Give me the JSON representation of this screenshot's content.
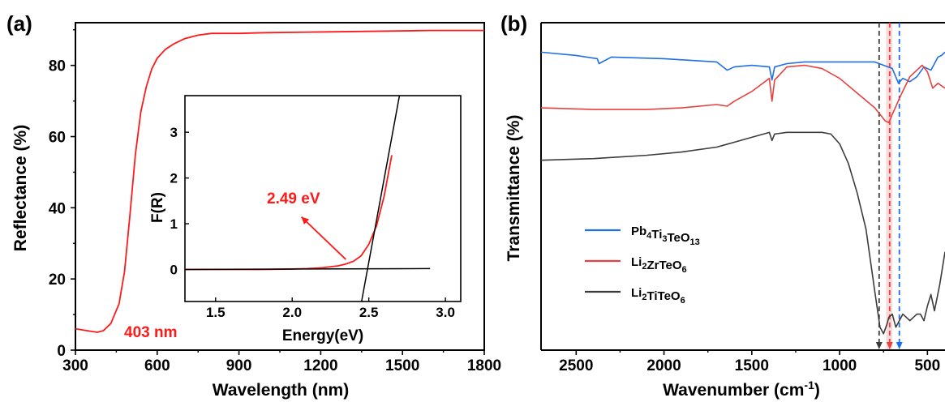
{
  "panels": {
    "a": {
      "label": "(a)",
      "xlabel": "Wavelength (nm)",
      "ylabel": "Reflectance (%)",
      "annotation": "403 nm",
      "xticks": [
        300,
        600,
        900,
        1200,
        1500,
        1800
      ],
      "yticks": [
        0,
        20,
        40,
        60,
        80
      ],
      "inset": {
        "xlabel": "Energy(eV)",
        "ylabel": "F(R)",
        "annotation": "2.49 eV",
        "xticks": [
          "1.5",
          "2.0",
          "2.5",
          "3.0"
        ],
        "yticks": [
          "0",
          "1",
          "2",
          "3"
        ]
      }
    },
    "b": {
      "label": "(b)",
      "xlabel": "Wavenumber (cm",
      "xlabel_sup": "-1",
      "xlabel_end": ")",
      "ylabel": "Transmittance (%)",
      "xticks": [
        2500,
        2000,
        1500,
        1000,
        500
      ],
      "legend": [
        {
          "base": "Pb",
          "parts": [
            [
              "Pb",
              ""
            ],
            [
              "4",
              "sub"
            ],
            [
              "Ti",
              ""
            ],
            [
              "3",
              "sub"
            ],
            [
              "TeO",
              ""
            ],
            [
              "13",
              "sub"
            ]
          ],
          "color": "#1f6fe5"
        },
        {
          "base": "Li",
          "parts": [
            [
              "Li",
              ""
            ],
            [
              "2",
              "sub"
            ],
            [
              "ZrTeO",
              ""
            ],
            [
              "6",
              "sub"
            ]
          ],
          "color": "#e8403f"
        },
        {
          "base": "Li",
          "parts": [
            [
              "Li",
              ""
            ],
            [
              "2",
              "sub"
            ],
            [
              "TiTeO",
              ""
            ],
            [
              "6",
              "sub"
            ]
          ],
          "color": "#3c3c3c"
        }
      ],
      "legend_names": [
        "Pb4Ti3TeO13",
        "Li2ZrTeO6",
        "Li2TiTeO6"
      ]
    }
  },
  "chart_data": [
    {
      "type": "line",
      "title": "",
      "xlabel": "Wavelength (nm)",
      "ylabel": "Reflectance (%)",
      "xlim": [
        300,
        1800
      ],
      "ylim": [
        0,
        92
      ],
      "series": [
        {
          "color": "#ff1a1a",
          "x": [
            300,
            340,
            380,
            403,
            430,
            460,
            480,
            500,
            520,
            540,
            560,
            580,
            600,
            630,
            660,
            700,
            750,
            800,
            850,
            900,
            1000,
            1200,
            1400,
            1600,
            1800
          ],
          "y": [
            6,
            5.5,
            5,
            5.5,
            7.5,
            13,
            22,
            38,
            55,
            67,
            74,
            79,
            82,
            84.5,
            86,
            87.5,
            88.5,
            89,
            89,
            89,
            89.2,
            89.4,
            89.6,
            89.8,
            89.8
          ]
        }
      ],
      "annotations": [
        "403 nm"
      ],
      "inset": {
        "type": "line",
        "xlabel": "Energy(eV)",
        "ylabel": "F(R)",
        "xlim": [
          1.3,
          3.1
        ],
        "ylim": [
          -0.7,
          3.8
        ],
        "series": [
          {
            "color": "#ff1a1a",
            "x": [
              1.3,
              1.6,
              1.8,
              2.0,
              2.1,
              2.2,
              2.3,
              2.35,
              2.4,
              2.45,
              2.5,
              2.55,
              2.6,
              2.65
            ],
            "y": [
              0.0,
              0.0,
              0.0,
              0.01,
              0.02,
              0.04,
              0.08,
              0.12,
              0.18,
              0.3,
              0.55,
              0.95,
              1.6,
              2.5
            ]
          },
          {
            "color": "#000000",
            "x": [
              2.45,
              2.7
            ],
            "y": [
              -0.75,
              3.8
            ]
          },
          {
            "color": "#000000",
            "x": [
              1.3,
              2.9
            ],
            "y": [
              0.0,
              0.02
            ]
          }
        ],
        "annotations": [
          "2.49 eV"
        ]
      }
    },
    {
      "type": "line",
      "title": "",
      "xlabel": "Wavenumber (cm-1)",
      "ylabel": "Transmittance (%)",
      "xlim": [
        2700,
        400
      ],
      "ylim": [
        0,
        100
      ],
      "reversed_x": true,
      "series": [
        {
          "name": "Pb4Ti3TeO13",
          "color": "#1f6fe5",
          "x": [
            2700,
            2500,
            2380,
            2370,
            2300,
            2000,
            1700,
            1640,
            1600,
            1500,
            1400,
            1385,
            1370,
            1300,
            1200,
            1100,
            1000,
            900,
            800,
            700,
            665,
            640,
            600,
            560,
            520,
            480,
            440,
            420,
            400
          ],
          "y": [
            91,
            90,
            89,
            87.5,
            89.5,
            89,
            88,
            85.5,
            86.5,
            87,
            86.5,
            82.5,
            86.5,
            87.5,
            88,
            88,
            88,
            88,
            88,
            86,
            81.5,
            83,
            82,
            83.5,
            86.5,
            85.5,
            89.5,
            90,
            91
          ]
        },
        {
          "name": "Li2ZrTeO6",
          "color": "#e8403f",
          "x": [
            2700,
            2400,
            2100,
            1900,
            1700,
            1640,
            1600,
            1500,
            1400,
            1385,
            1370,
            1300,
            1200,
            1100,
            1000,
            900,
            800,
            740,
            720,
            700,
            650,
            600,
            560,
            530,
            500,
            470,
            440,
            400
          ],
          "y": [
            74,
            73.5,
            73.5,
            74,
            75,
            74.5,
            76,
            79,
            83,
            76,
            82.5,
            86.5,
            87,
            86,
            83,
            78.5,
            74,
            70,
            69.5,
            72,
            78,
            83.5,
            85.5,
            87,
            85,
            80,
            81.5,
            80
          ]
        },
        {
          "name": "Li2TiTeO6",
          "color": "#3c3c3c",
          "x": [
            2700,
            2400,
            2100,
            1900,
            1700,
            1600,
            1500,
            1400,
            1385,
            1370,
            1300,
            1200,
            1100,
            1050,
            1000,
            950,
            900,
            850,
            800,
            770,
            750,
            730,
            720,
            700,
            680,
            660,
            640,
            620,
            600,
            580,
            560,
            540,
            520,
            500,
            480,
            460,
            430,
            400
          ],
          "y": [
            58,
            58.5,
            59.5,
            60.5,
            62,
            63.5,
            65,
            66.5,
            64,
            66,
            66.5,
            66.5,
            66.5,
            66,
            63,
            57,
            48,
            37,
            18,
            7,
            5,
            8,
            10,
            11,
            7,
            9,
            11,
            10,
            9,
            10,
            11,
            11,
            9,
            13.5,
            17,
            12,
            20,
            30
          ]
        }
      ],
      "reference_lines": [
        {
          "x": 775,
          "color": "#3c3c3c",
          "style": "dashed"
        },
        {
          "x": 715,
          "color": "#e8403f",
          "style": "dashed"
        },
        {
          "x": 660,
          "color": "#1f6fe5",
          "style": "dashed"
        }
      ],
      "shaded_band": {
        "x_from": 735,
        "x_to": 700,
        "color": "#f5c0c0"
      },
      "legend_position": "bottom-left",
      "yticks_visible": false
    }
  ]
}
